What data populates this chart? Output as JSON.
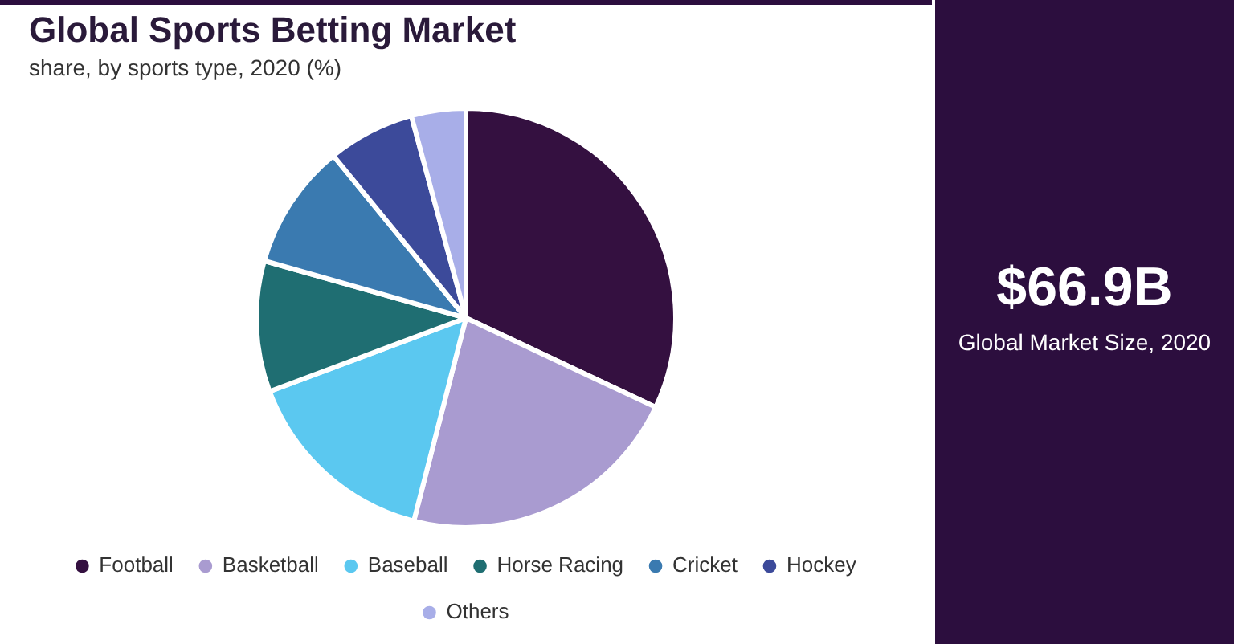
{
  "chart_data": {
    "type": "pie",
    "title": "Global Sports Betting Market",
    "subtitle": "share, by sports type, 2020 (%)",
    "categories": [
      "Football",
      "Basketball",
      "Baseball",
      "Horse Racing",
      "Cricket",
      "Hockey",
      "Others"
    ],
    "values": [
      32,
      22,
      15.3,
      10.1,
      9.7,
      6.7,
      4.2
    ],
    "colors": [
      "#341040",
      "#a99bd0",
      "#5bc8f0",
      "#1f6e72",
      "#3a7ab0",
      "#3c4a9a",
      "#a8aee8"
    ],
    "legend": "bottom",
    "annotations": [
      "$66.9B",
      "Global Market Size, 2020"
    ]
  }
}
